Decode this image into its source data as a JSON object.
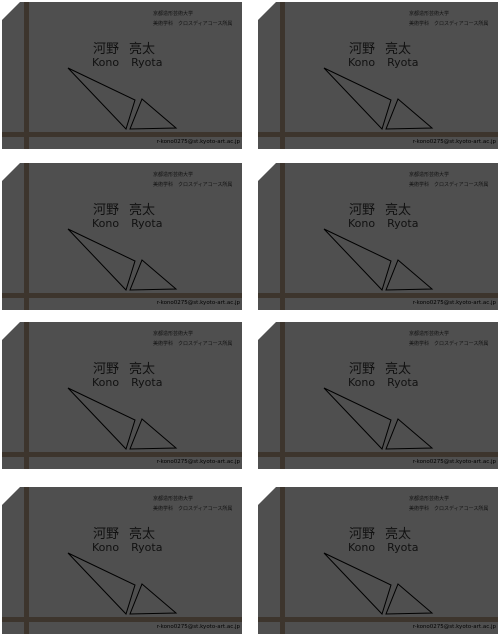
{
  "sheet": {
    "cards": [
      {
        "university": "京都造形芸術大学",
        "department": "美術学科　クロスディアコース所属",
        "name_jp_family": "河野",
        "name_jp_given": "亮太",
        "name_en_family": "Kono",
        "name_en_given": "Ryota",
        "email": "r-kono0275@st.kyoto-art.ac.jp"
      },
      {
        "university": "京都造形芸術大学",
        "department": "美術学科　クロスディアコース所属",
        "name_jp_family": "河野",
        "name_jp_given": "亮太",
        "name_en_family": "Kono",
        "name_en_given": "Ryota",
        "email": "r-kono0275@st.kyoto-art.ac.jp"
      },
      {
        "university": "京都造形芸術大学",
        "department": "美術学科　クロスディアコース所属",
        "name_jp_family": "河野",
        "name_jp_given": "亮太",
        "name_en_family": "Kono",
        "name_en_given": "Ryota",
        "email": "r-kono0275@st.kyoto-art.ac.jp"
      },
      {
        "university": "京都造形芸術大学",
        "department": "美術学科　クロスディアコース所属",
        "name_jp_family": "河野",
        "name_jp_given": "亮太",
        "name_en_family": "Kono",
        "name_en_given": "Ryota",
        "email": "r-kono0275@st.kyoto-art.ac.jp"
      },
      {
        "university": "京都造形芸術大学",
        "department": "美術学科　クロスディアコース所属",
        "name_jp_family": "河野",
        "name_jp_given": "亮太",
        "name_en_family": "Kono",
        "name_en_given": "Ryota",
        "email": "r-kono0275@st.kyoto-art.ac.jp"
      },
      {
        "university": "京都造形芸術大学",
        "department": "美術学科　クロスディアコース所属",
        "name_jp_family": "河野",
        "name_jp_given": "亮太",
        "name_en_family": "Kono",
        "name_en_given": "Ryota",
        "email": "r-kono0275@st.kyoto-art.ac.jp"
      },
      {
        "university": "京都造形芸術大学",
        "department": "美術学科　クロスディアコース所属",
        "name_jp_family": "河野",
        "name_jp_given": "亮太",
        "name_en_family": "Kono",
        "name_en_given": "Ryota",
        "email": "r-kono0275@st.kyoto-art.ac.jp"
      },
      {
        "university": "京都造形芸術大学",
        "department": "美術学科　クロスディアコース所属",
        "name_jp_family": "河野",
        "name_jp_given": "亮太",
        "name_en_family": "Kono",
        "name_en_given": "Ryota",
        "email": "r-kono0275@st.kyoto-art.ac.jp"
      }
    ]
  },
  "colors": {
    "card_background": "#4f4f4f",
    "accent_bars": "#3d352d",
    "text": "#111111",
    "page_background": "#ffffff"
  }
}
